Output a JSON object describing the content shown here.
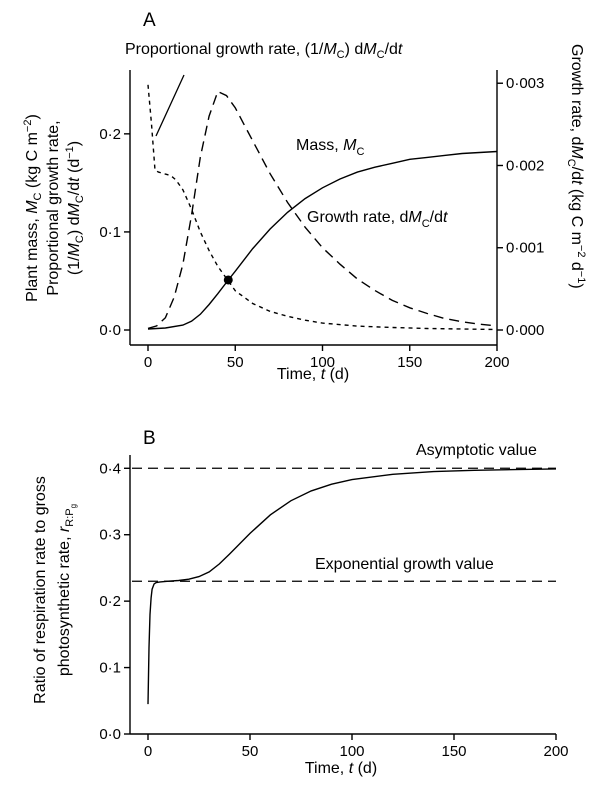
{
  "chart_data": [
    {
      "panel": "A",
      "type": "line",
      "xlabel": "Time, t (d)",
      "ylabel_left_lines": [
        "Plant mass, MC (kg C m⁻²)",
        "Proportional growth rate,",
        "(1/MC) dMC/dt (d⁻¹)"
      ],
      "ylabel_right": "Growth rate, dMC/dt (kg C m⁻² d⁻¹)",
      "xlim": [
        0,
        200
      ],
      "ylim_left": [
        0,
        0.26
      ],
      "ylim_right": [
        0,
        0.0031
      ],
      "xticks": [
        "0",
        "50",
        "100",
        "150",
        "200"
      ],
      "yticks_left": [
        "0·0",
        "0·1",
        "0·2"
      ],
      "yticks_right": [
        "0·000",
        "0·001",
        "0·002",
        "0·003"
      ],
      "annotations": {
        "proportional": "Proportional growth rate, (1/MC) dMC/dt",
        "mass": "Mass, MC",
        "growth": "Growth rate, dMC/dt"
      },
      "marker": {
        "x": 46,
        "y": 0.051
      },
      "series": [
        {
          "name": "Mass, MC",
          "style": "solid",
          "axis": "left",
          "x": [
            0,
            10,
            20,
            25,
            30,
            35,
            40,
            46,
            50,
            60,
            70,
            80,
            90,
            100,
            110,
            120,
            130,
            140,
            150,
            160,
            170,
            180,
            190,
            200
          ],
          "y": [
            0.001,
            0.002,
            0.005,
            0.009,
            0.016,
            0.026,
            0.037,
            0.051,
            0.06,
            0.083,
            0.103,
            0.12,
            0.134,
            0.145,
            0.154,
            0.161,
            0.166,
            0.17,
            0.174,
            0.176,
            0.178,
            0.18,
            0.181,
            0.182
          ]
        },
        {
          "name": "Growth rate, dMC/dt",
          "style": "long-dash",
          "axis": "right",
          "x": [
            0,
            5,
            10,
            15,
            20,
            25,
            30,
            35,
            40,
            45,
            50,
            55,
            60,
            70,
            80,
            90,
            100,
            110,
            120,
            130,
            140,
            150,
            160,
            170,
            180,
            190,
            200
          ],
          "y": [
            2e-05,
            5e-05,
            0.00015,
            0.0004,
            0.0008,
            0.0014,
            0.0021,
            0.0026,
            0.0029,
            0.00285,
            0.0027,
            0.0025,
            0.0023,
            0.0019,
            0.00155,
            0.00125,
            0.001,
            0.0008,
            0.00062,
            0.00048,
            0.00036,
            0.00027,
            0.0002,
            0.00014,
            0.0001,
            7e-05,
            5e-05
          ]
        },
        {
          "name": "Proportional growth rate, (1/MC) dMC/dt",
          "style": "short-dash",
          "axis": "left",
          "x": [
            0,
            2,
            4,
            6,
            8,
            10,
            12,
            14,
            16,
            20,
            25,
            30,
            35,
            40,
            50,
            60,
            70,
            80,
            90,
            100,
            120,
            140,
            160,
            180,
            200
          ],
          "y": [
            0.25,
            0.21,
            0.163,
            0.161,
            0.16,
            0.159,
            0.158,
            0.156,
            0.153,
            0.143,
            0.123,
            0.1,
            0.081,
            0.065,
            0.04,
            0.027,
            0.019,
            0.014,
            0.01,
            0.007,
            0.004,
            0.0025,
            0.0015,
            0.001,
            0.0005
          ]
        }
      ]
    },
    {
      "panel": "B",
      "type": "line",
      "xlabel": "Time, t (d)",
      "ylabel_lines": [
        "Ratio of respiration rate to gross",
        "photosynthetic rate, rR:Pg"
      ],
      "xlim": [
        0,
        200
      ],
      "ylim": [
        0,
        0.42
      ],
      "xticks": [
        "0",
        "50",
        "100",
        "150",
        "200"
      ],
      "yticks": [
        "0·0",
        "0·1",
        "0·2",
        "0·3",
        "0·4"
      ],
      "reference_lines": [
        {
          "label": "Asymptotic value",
          "y": 0.4
        },
        {
          "label": "Exponential growth value",
          "y": 0.23
        }
      ],
      "series": [
        {
          "name": "rR:Pg",
          "style": "solid",
          "x": [
            0,
            0.5,
            1,
            1.5,
            2,
            3,
            4,
            6,
            10,
            15,
            20,
            25,
            30,
            35,
            40,
            50,
            60,
            70,
            80,
            90,
            100,
            120,
            140,
            160,
            180,
            200
          ],
          "y": [
            0.045,
            0.13,
            0.18,
            0.205,
            0.218,
            0.226,
            0.228,
            0.229,
            0.23,
            0.231,
            0.233,
            0.237,
            0.244,
            0.256,
            0.271,
            0.302,
            0.33,
            0.351,
            0.366,
            0.376,
            0.383,
            0.391,
            0.395,
            0.397,
            0.398,
            0.399
          ]
        }
      ]
    }
  ]
}
